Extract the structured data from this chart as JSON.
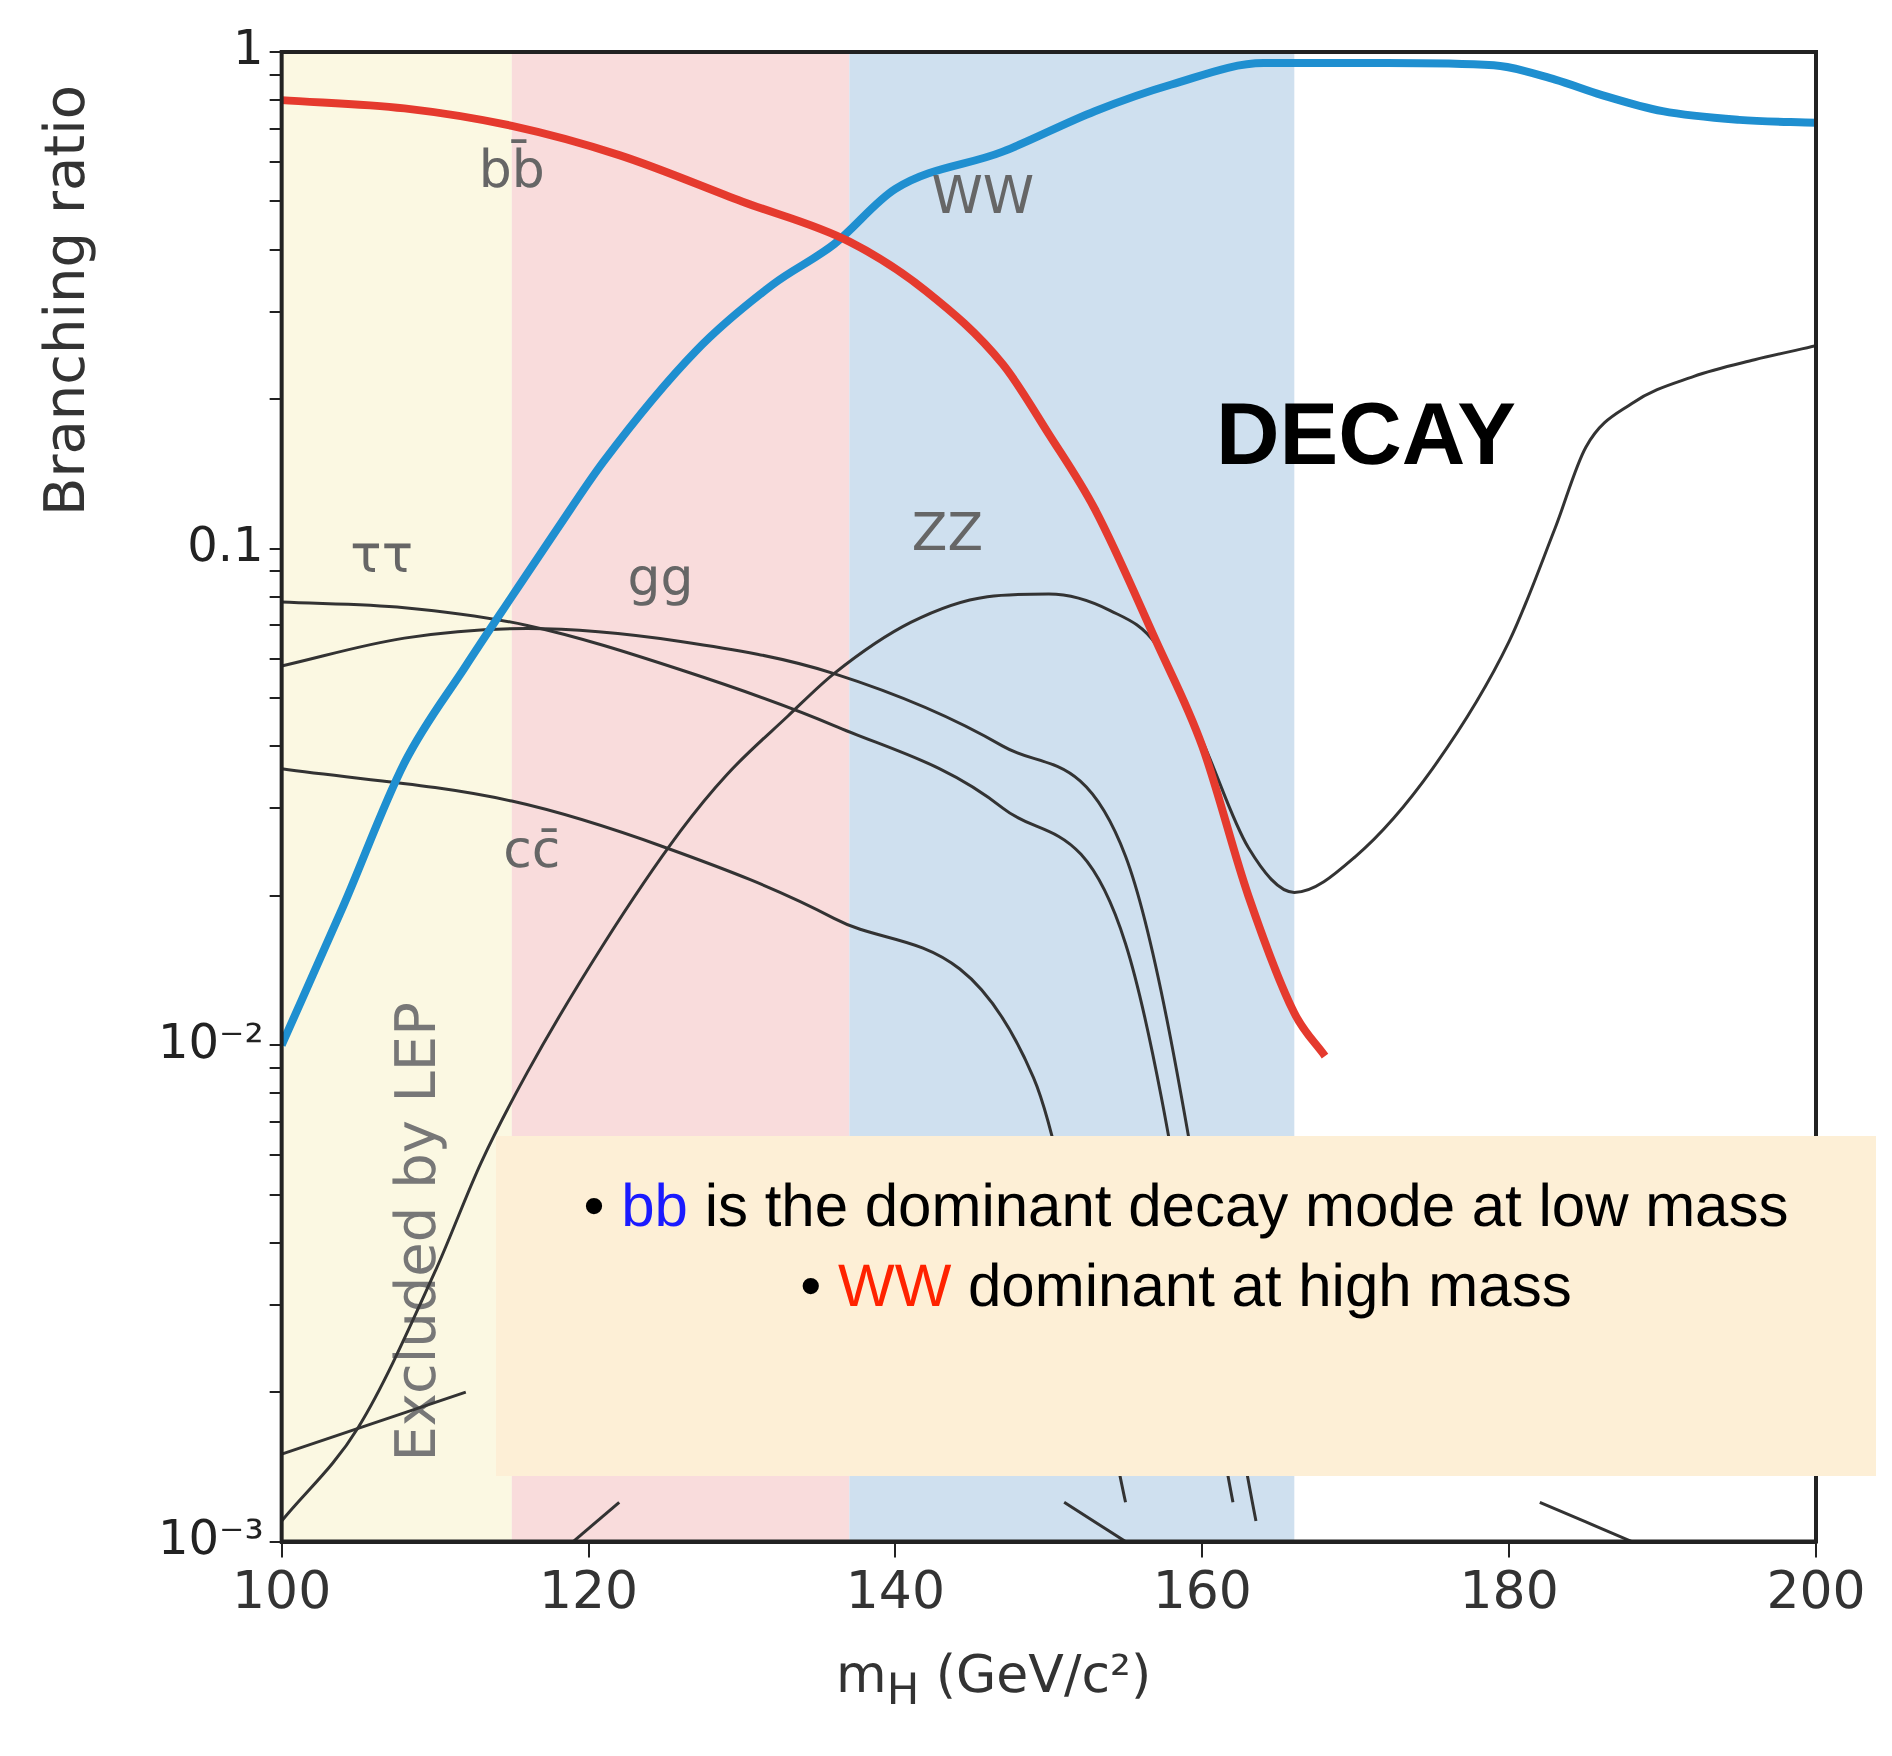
{
  "chart_data": {
    "type": "line",
    "xlabel": "m$_{H}$  (GeV/c²)",
    "ylabel": "Branching ratio",
    "xlim": [
      100,
      200
    ],
    "xticks": [
      100,
      120,
      140,
      160,
      180,
      200
    ],
    "ylim": [
      0.001,
      1
    ],
    "yticks": [
      {
        "value": 0.001,
        "label": "10⁻³"
      },
      {
        "value": 0.002,
        "label": null
      },
      {
        "value": 0.003,
        "label": null
      },
      {
        "value": 0.004,
        "label": null
      },
      {
        "value": 0.005,
        "label": null
      },
      {
        "value": 0.006,
        "label": null
      },
      {
        "value": 0.007,
        "label": null
      },
      {
        "value": 0.008,
        "label": null
      },
      {
        "value": 0.009,
        "label": null
      },
      {
        "value": 0.01,
        "label": "10⁻²"
      },
      {
        "value": 0.02,
        "label": null
      },
      {
        "value": 0.03,
        "label": null
      },
      {
        "value": 0.04,
        "label": null
      },
      {
        "value": 0.05,
        "label": null
      },
      {
        "value": 0.06,
        "label": null
      },
      {
        "value": 0.07,
        "label": null
      },
      {
        "value": 0.08,
        "label": null
      },
      {
        "value": 0.09,
        "label": null
      },
      0.1,
      {
        "value": 0.2,
        "label": null
      },
      {
        "value": 0.3,
        "label": null
      },
      {
        "value": 0.4,
        "label": null
      },
      {
        "value": 0.5,
        "label": null
      },
      {
        "value": 0.6,
        "label": null
      },
      {
        "value": 0.7,
        "label": null
      },
      {
        "value": 0.8,
        "label": null
      },
      {
        "value": 0.9,
        "label": null
      },
      1
    ],
    "log": "y",
    "grid": false,
    "legend": false,
    "marker": "none",
    "line_style": "solid",
    "bands": [
      {
        "axis": "x",
        "from": 100,
        "to": 115,
        "label": "Excluded by LEP",
        "color": "#fbf8e2"
      },
      {
        "axis": "x",
        "from": 115,
        "to": 137,
        "color": "#f9dcdc"
      },
      {
        "axis": "x",
        "from": 137,
        "to": 166,
        "color": "#cfe0ef"
      }
    ],
    "series": [
      {
        "name": "bb̄",
        "color": "#e53a2e",
        "x": [
          100,
          108,
          115,
          122,
          130,
          137,
          142,
          147,
          150,
          153,
          157,
          160,
          163,
          166,
          168
        ],
        "values": [
          0.8,
          0.77,
          0.71,
          0.62,
          0.5,
          0.415,
          0.33,
          0.235,
          0.17,
          0.12,
          0.065,
          0.04,
          0.02,
          0.0116,
          0.0095
        ]
      },
      {
        "name": "WW",
        "color": "#1f8fd0",
        "x": [
          100,
          104,
          108,
          112,
          115,
          118,
          121,
          127,
          132,
          136,
          140,
          147,
          153,
          158,
          164,
          172,
          179,
          183,
          186,
          190,
          195,
          200
        ],
        "values": [
          0.01,
          0.019,
          0.037,
          0.058,
          0.08,
          0.11,
          0.15,
          0.25,
          0.34,
          0.41,
          0.53,
          0.63,
          0.76,
          0.86,
          0.95,
          0.95,
          0.94,
          0.88,
          0.82,
          0.76,
          0.73,
          0.72
        ]
      },
      {
        "name": "ττ",
        "color": "#333333",
        "x": [
          100,
          108,
          116,
          126,
          136,
          147,
          155,
          162
        ],
        "values": [
          0.078,
          0.076,
          0.07,
          0.057,
          0.044,
          0.03,
          0.016,
          0.0012
        ]
      },
      {
        "name": "gg",
        "color": "#333333",
        "x": [
          100,
          108,
          116,
          126,
          136,
          147,
          155,
          163.5
        ],
        "values": [
          0.058,
          0.066,
          0.069,
          0.065,
          0.056,
          0.04,
          0.024,
          0.0011
        ]
      },
      {
        "name": "ZZ",
        "color": "#333333",
        "x": [
          100,
          105,
          110,
          113,
          116,
          121,
          126,
          129,
          133,
          136,
          141,
          146,
          150,
          154,
          157,
          160,
          163,
          166,
          170,
          175,
          180,
          183,
          185,
          188,
          192,
          196,
          200
        ],
        "values": [
          0.0011,
          0.0017,
          0.0035,
          0.0058,
          0.0088,
          0.016,
          0.027,
          0.035,
          0.046,
          0.056,
          0.071,
          0.08,
          0.081,
          0.075,
          0.064,
          0.041,
          0.025,
          0.0203,
          0.024,
          0.036,
          0.065,
          0.11,
          0.16,
          0.196,
          0.222,
          0.24,
          0.256
        ]
      },
      {
        "name": "cc̄",
        "color": "#333333",
        "x": [
          100,
          115,
          125,
          136,
          149,
          155
        ],
        "values": [
          0.036,
          0.031,
          0.025,
          0.018,
          0.0086,
          0.0012
        ]
      },
      {
        "color": "#333333",
        "x": [
          100,
          112
        ],
        "values": [
          0.0015,
          0.002
        ]
      },
      {
        "color": "#333333",
        "x": [
          119,
          122
        ],
        "values": [
          0.001,
          0.0012
        ]
      },
      {
        "color": "#333333",
        "x": [
          151,
          155
        ],
        "values": [
          0.0012,
          0.001
        ]
      },
      {
        "color": "#333333",
        "x": [
          182,
          188
        ],
        "values": [
          0.0012,
          0.001
        ]
      }
    ],
    "annotations": [
      "DECAY",
      "• bb is the dominant decay mode at low mass",
      "• WW dominant at high mass"
    ]
  }
}
